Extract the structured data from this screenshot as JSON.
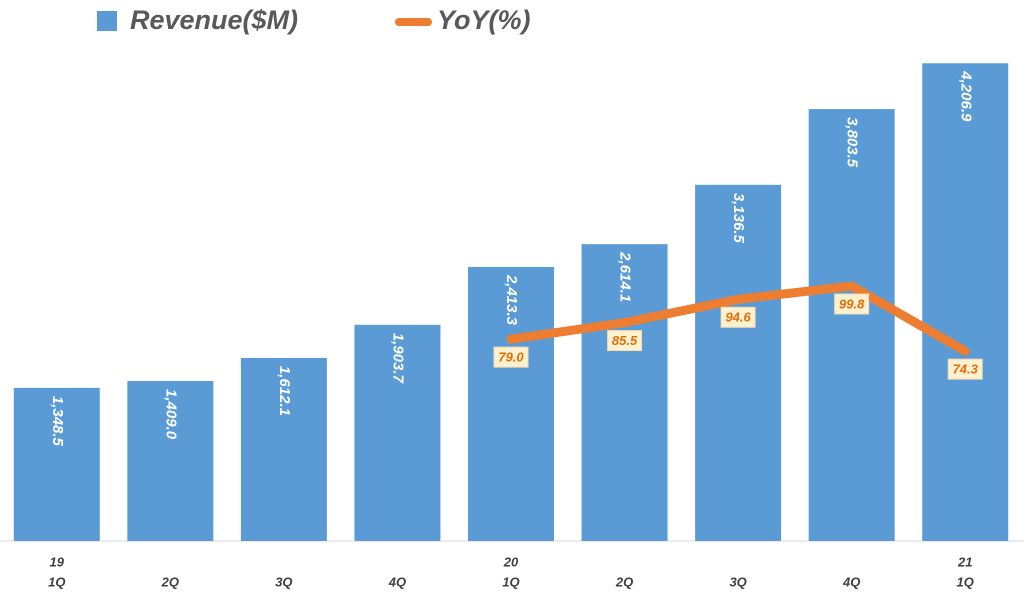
{
  "chart_data": {
    "type": "bar-line",
    "categories": [
      "1Q",
      "2Q",
      "3Q",
      "4Q",
      "1Q",
      "2Q",
      "3Q",
      "4Q",
      "1Q"
    ],
    "years": [
      "19",
      null,
      null,
      null,
      "20",
      null,
      null,
      null,
      "21"
    ],
    "ylim": [
      0,
      4500
    ],
    "y2lim": [
      0,
      200
    ],
    "series": [
      {
        "name": "Revenue($M)",
        "type": "bar",
        "color": "#5b9bd5",
        "values": [
          1348.5,
          1409.0,
          1612.1,
          1903.7,
          2413.3,
          2614.1,
          3136.5,
          3803.5,
          4206.9
        ],
        "value_labels": [
          "1,348.5",
          "1,409.0",
          "1,612.1",
          "1,903.7",
          "2,413.3",
          "2,614.1",
          "3,136.5",
          "3,803.5",
          "4,206.9"
        ]
      },
      {
        "name": "YoY(%)",
        "type": "line",
        "axis": "y2",
        "color": "#ed7d31",
        "values": [
          null,
          null,
          null,
          null,
          79.0,
          85.5,
          94.6,
          99.8,
          74.3
        ],
        "value_labels": [
          null,
          null,
          null,
          null,
          "79.0",
          "85.5",
          "94.6",
          "99.8",
          "74.3"
        ]
      }
    ]
  }
}
